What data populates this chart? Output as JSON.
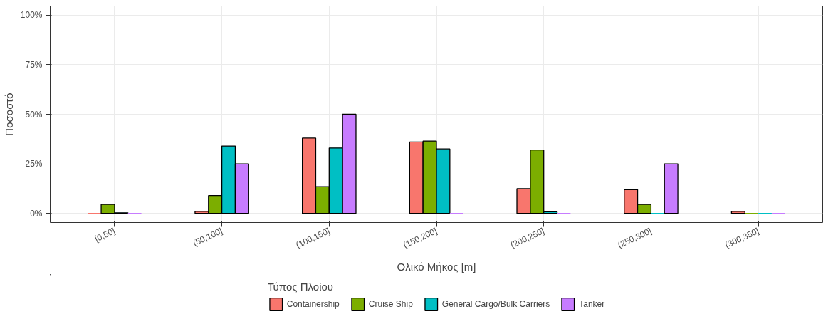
{
  "chart_data": {
    "type": "bar",
    "xlabel": "Ολικό Μήκος [m]",
    "ylabel": "Ποσοστό",
    "legend_title": "Τύπος Πλοίου",
    "categories": [
      "[0,50]",
      "(50,100]",
      "(100,150]",
      "(150,200]",
      "(200,250]",
      "(250,300]",
      "(300,350]"
    ],
    "series": [
      {
        "name": "Containership",
        "color": "#f8766d",
        "values": [
          0,
          1,
          38,
          36,
          12.5,
          12,
          1
        ]
      },
      {
        "name": "Cruise Ship",
        "color": "#7cae00",
        "values": [
          4.5,
          9,
          13.5,
          36.5,
          32,
          4.5,
          0
        ]
      },
      {
        "name": "General Cargo/Bulk Carriers",
        "color": "#00bfc4",
        "values": [
          0.3,
          34,
          33,
          32.5,
          0.8,
          0,
          0
        ]
      },
      {
        "name": "Tanker",
        "color": "#c77cff",
        "values": [
          0,
          25,
          50,
          0,
          0,
          25,
          0
        ]
      }
    ],
    "ylim": [
      -4.6,
      104.6
    ],
    "yticks": [
      {
        "value": 0,
        "label": "0%"
      },
      {
        "value": 25,
        "label": "25%"
      },
      {
        "value": 50,
        "label": "50%"
      },
      {
        "value": 75,
        "label": "75%"
      },
      {
        "value": 100,
        "label": "100%"
      }
    ],
    "grid": true,
    "legend": "bottom"
  }
}
